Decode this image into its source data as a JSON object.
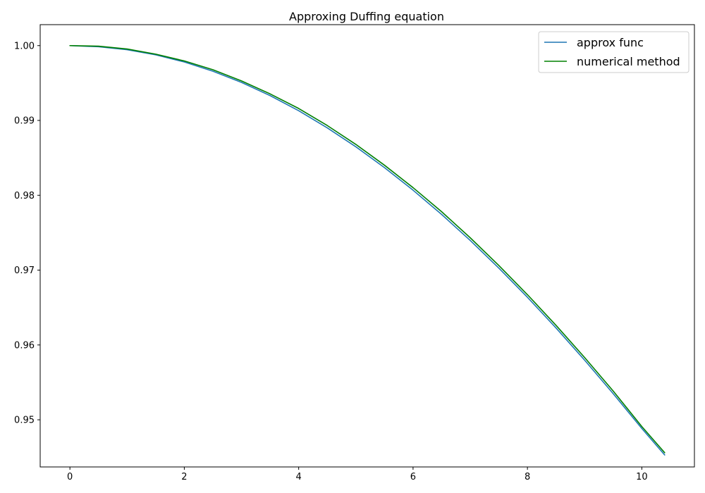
{
  "chart_data": {
    "type": "line",
    "title": "Approxing Duffing equation",
    "xlabel": "",
    "ylabel": "",
    "xlim": [
      -0.52,
      10.92
    ],
    "ylim": [
      0.9437,
      1.0028
    ],
    "xticks": [
      0,
      2,
      4,
      6,
      8,
      10
    ],
    "xtick_labels": [
      "0",
      "2",
      "4",
      "6",
      "8",
      "10"
    ],
    "yticks": [
      0.95,
      0.96,
      0.97,
      0.98,
      0.99,
      1.0
    ],
    "ytick_labels": [
      "0.95",
      "0.96",
      "0.97",
      "0.98",
      "0.99",
      "1.00"
    ],
    "grid": false,
    "legend": {
      "placement": "upper right"
    },
    "x": [
      0,
      0.5,
      1,
      1.5,
      2,
      2.5,
      3,
      3.5,
      4,
      4.5,
      5,
      5.5,
      6,
      6.5,
      7,
      7.5,
      8,
      8.5,
      9,
      9.5,
      10,
      10.4
    ],
    "series": [
      {
        "name": "approx func",
        "color": "#1f77b4",
        "values": [
          1.0,
          0.99985,
          0.99945,
          0.99877,
          0.99781,
          0.99658,
          0.99508,
          0.99332,
          0.9913,
          0.98901,
          0.98648,
          0.9837,
          0.98068,
          0.97744,
          0.97396,
          0.97027,
          0.96637,
          0.96227,
          0.95797,
          0.95349,
          0.94884,
          0.9453
        ]
      },
      {
        "name": "numerical method",
        "color": "#008000",
        "values": [
          1.0,
          0.99992,
          0.99955,
          0.99886,
          0.99795,
          0.99678,
          0.99528,
          0.99355,
          0.9916,
          0.98932,
          0.9868,
          0.98402,
          0.98102,
          0.9778,
          0.97432,
          0.97062,
          0.96672,
          0.96262,
          0.95832,
          0.95384,
          0.9491,
          0.9456
        ]
      }
    ]
  }
}
